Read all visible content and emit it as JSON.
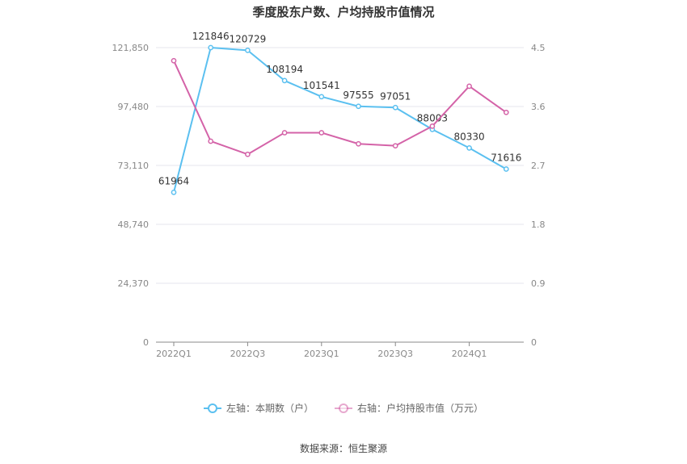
{
  "chart_data": {
    "type": "line",
    "title": "季度股东户数、户均持股市值情况",
    "x_tick_labels": [
      "2022Q1",
      "2022Q3",
      "2023Q1",
      "2023Q3",
      "2024Q1"
    ],
    "x_tick_positions": [
      0,
      2,
      4,
      6,
      8
    ],
    "n_points": 10,
    "left_axis": {
      "ticks": [
        "0",
        "24,370",
        "48,740",
        "73,110",
        "97,480",
        "121,850"
      ],
      "ylim": [
        0,
        121850
      ]
    },
    "right_axis": {
      "ticks": [
        "0",
        "0.9",
        "1.8",
        "2.7",
        "3.6",
        "4.5"
      ],
      "ylim": [
        0,
        4.5
      ]
    },
    "series": [
      {
        "name": "左轴：本期数（户）",
        "axis": "left",
        "color": "#5bc0f0",
        "values": [
          61964,
          121846,
          120729,
          108194,
          101541,
          97555,
          97051,
          88003,
          80330,
          71616
        ],
        "labels": [
          "61964",
          "121846",
          "120729",
          "108194",
          "101541",
          "97555",
          "97051",
          "88003",
          "80330",
          "71616"
        ]
      },
      {
        "name": "右轴：户均持股市值（万元）",
        "axis": "right",
        "color": "#d463a8",
        "values": [
          4.3,
          3.07,
          2.87,
          3.2,
          3.2,
          3.03,
          3.0,
          3.3,
          3.91,
          3.51
        ]
      }
    ],
    "grid": true,
    "legend_position": "bottom"
  },
  "source": "数据来源：恒生聚源"
}
